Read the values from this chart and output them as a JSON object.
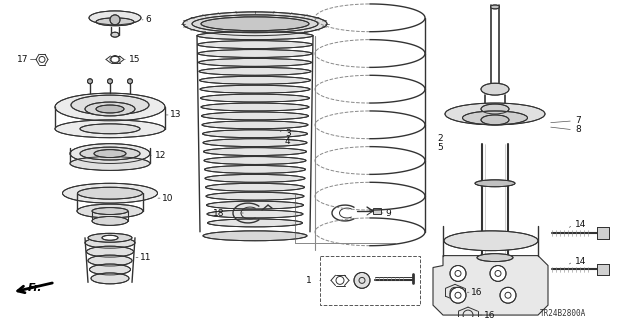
{
  "bg_color": "#ffffff",
  "line_color": "#333333",
  "label_color": "#111111",
  "font_size": 6.5,
  "text_code": "TR24B2800A",
  "fig_w": 6.4,
  "fig_h": 3.2,
  "dpi": 100
}
